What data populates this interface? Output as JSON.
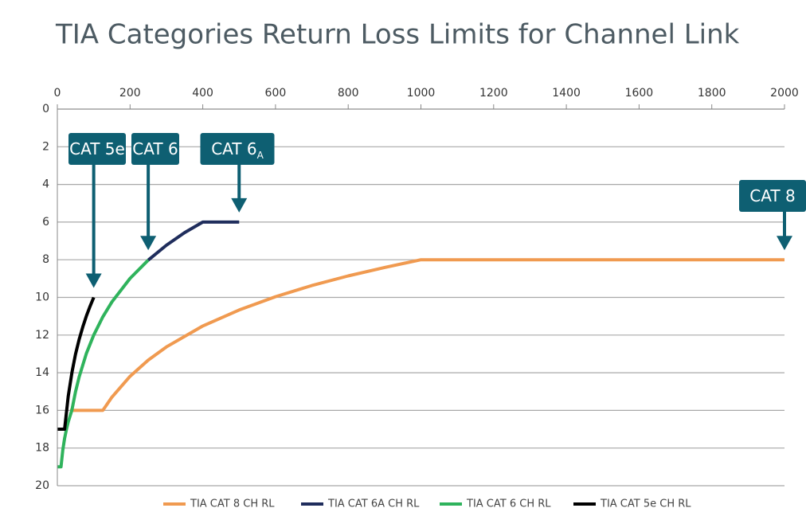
{
  "chart_data": {
    "type": "line",
    "title": "TIA Categories Return Loss Limits for Channel Link",
    "xlim": [
      0,
      2000
    ],
    "xticks": [
      0,
      200,
      400,
      600,
      800,
      1000,
      1200,
      1400,
      1600,
      1800,
      2000
    ],
    "ylim": [
      0,
      20
    ],
    "yticks": [
      0,
      2,
      4,
      6,
      8,
      10,
      12,
      14,
      16,
      18,
      20
    ],
    "y_inverted": true,
    "x_axis_position": "top",
    "grid": true,
    "legend": "bottom",
    "series": [
      {
        "name": "TIA CAT 8 CH RL",
        "color": "#f09a50",
        "x": [
          35,
          125,
          150,
          200,
          250,
          300,
          400,
          500,
          600,
          700,
          800,
          900,
          1000,
          2000
        ],
        "values": [
          16,
          16,
          15.3,
          14.19,
          13.33,
          12.63,
          11.52,
          10.67,
          9.96,
          9.37,
          8.86,
          8.41,
          8,
          8
        ]
      },
      {
        "name": "TIA CAT 6A CH RL",
        "color": "#1f2d5c",
        "x": [
          250,
          300,
          350,
          400,
          500
        ],
        "values": [
          8.02,
          7.23,
          6.56,
          6,
          6
        ]
      },
      {
        "name": "TIA CAT 6 CH RL",
        "color": "#2fb35c",
        "x": [
          1,
          10,
          15,
          20,
          25,
          30,
          40,
          50,
          60,
          80,
          100,
          125,
          150,
          200,
          250
        ],
        "values": [
          19,
          19,
          18.12,
          17.49,
          17.01,
          16.61,
          15.98,
          15.01,
          14.22,
          12.97,
          12,
          11.03,
          10.24,
          8.99,
          8.02
        ]
      },
      {
        "name": "TIA CAT 5e CH RL",
        "color": "#000000",
        "x": [
          1,
          20,
          30,
          40,
          50,
          60,
          70,
          80,
          90,
          100
        ],
        "values": [
          17,
          17,
          15.24,
          13.99,
          13.02,
          12.23,
          11.56,
          10.98,
          10.47,
          10
        ]
      }
    ],
    "annotations": [
      {
        "text": "CAT 5e",
        "x": 100,
        "y": 10
      },
      {
        "text": "CAT 6",
        "x": 250,
        "y": 8
      },
      {
        "text": "CAT 6",
        "sub": "A",
        "x": 500,
        "y": 6
      },
      {
        "text": "CAT 8",
        "x": 2000,
        "y": 8
      }
    ]
  }
}
